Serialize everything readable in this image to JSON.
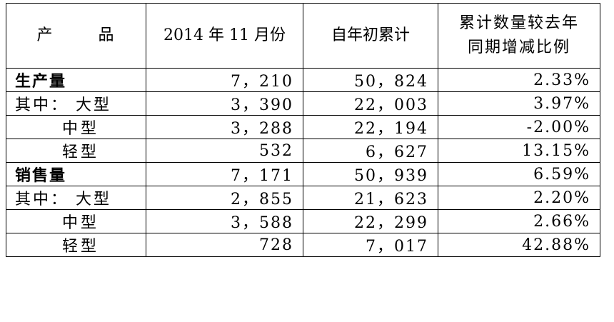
{
  "headers": {
    "product_left": "产",
    "product_right": "品",
    "month": "2014 年 11 月份",
    "ytd": "自年初累计",
    "yoy_line1": "累计数量较去年",
    "yoy_line2": "同期增减比例"
  },
  "rows": [
    {
      "label": "生产量",
      "month": "7，210",
      "ytd": "50，824",
      "yoy": "2.33%"
    },
    {
      "label": "其中： 大型",
      "month": "3，390",
      "ytd": "22，003",
      "yoy": "3.97%"
    },
    {
      "label": "中型",
      "month": "3，288",
      "ytd": "22，194",
      "yoy": "-2.00%"
    },
    {
      "label": "轻型",
      "month": "532",
      "ytd": "6，627",
      "yoy": "13.15%"
    },
    {
      "label": "销售量",
      "month": "7，171",
      "ytd": "50，939",
      "yoy": "6.59%"
    },
    {
      "label": "其中： 大型",
      "month": "2，855",
      "ytd": "21，623",
      "yoy": "2.20%"
    },
    {
      "label": "中型",
      "month": "3，588",
      "ytd": "22，299",
      "yoy": "2.66%"
    },
    {
      "label": "轻型",
      "month": "728",
      "ytd": "7，017",
      "yoy": "42.88%"
    }
  ]
}
